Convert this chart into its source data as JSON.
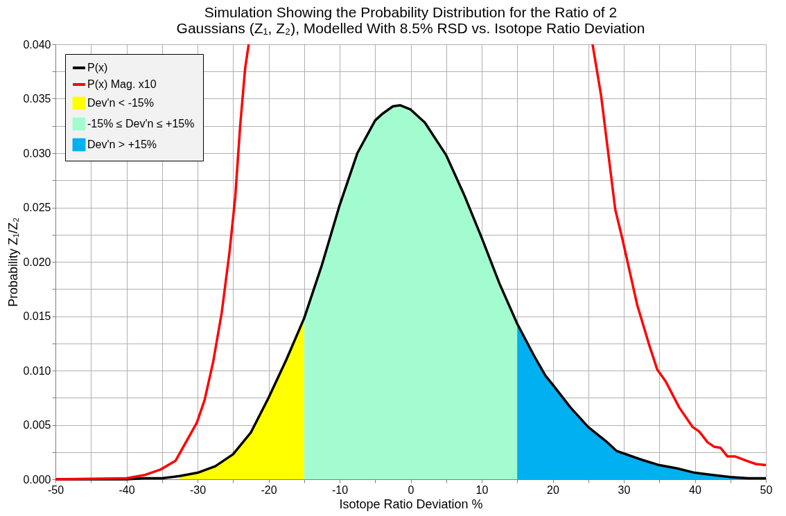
{
  "chart_data": {
    "type": "line",
    "title": "Simulation Showing the Probability Distribution for the Ratio of 2 Gaussians (Z₁, Z₂), Modelled With 8.5% RSD vs. Isotope Ratio Deviation",
    "xlabel": "Isotope Ratio Deviation %",
    "ylabel": "Probability Z₁/Z₂",
    "xlim": [
      -50,
      50
    ],
    "xticks": [
      -50,
      {
        "value": -45,
        "label": null
      },
      -40,
      {
        "value": -35,
        "label": null
      },
      -30,
      {
        "value": -25,
        "label": null
      },
      -20,
      {
        "value": -15,
        "label": null
      },
      -10,
      {
        "value": -5,
        "label": null
      },
      0,
      {
        "value": 5,
        "label": null
      },
      10,
      {
        "value": 15,
        "label": null
      },
      20,
      {
        "value": 25,
        "label": null
      },
      30,
      {
        "value": 35,
        "label": null
      },
      40,
      {
        "value": 45,
        "label": null
      },
      50
    ],
    "ylim": [
      0,
      0.04
    ],
    "yticks": [
      {
        "value": 0,
        "label": "0.000"
      },
      {
        "value": 0.0025,
        "label": null
      },
      {
        "value": 0.005,
        "label": "0.005"
      },
      {
        "value": 0.0075,
        "label": null
      },
      {
        "value": 0.01,
        "label": "0.010"
      },
      {
        "value": 0.0125,
        "label": null
      },
      {
        "value": 0.015,
        "label": "0.015"
      },
      {
        "value": 0.0175,
        "label": null
      },
      {
        "value": 0.02,
        "label": "0.020"
      },
      {
        "value": 0.0225,
        "label": null
      },
      {
        "value": 0.025,
        "label": "0.025"
      },
      {
        "value": 0.0275,
        "label": null
      },
      {
        "value": 0.03,
        "label": "0.030"
      },
      {
        "value": 0.0325,
        "label": null
      },
      {
        "value": 0.035,
        "label": "0.035"
      },
      {
        "value": 0.0375,
        "label": null
      },
      {
        "value": 0.04,
        "label": "0.040"
      }
    ],
    "grid": true,
    "legend": "top left",
    "marker": "none",
    "line_style": "solid",
    "series": [
      {
        "name": "Dev'n < -15%",
        "type": "area",
        "color": "#ffff00",
        "x": [
          -32.5,
          -30,
          -27.5,
          -25,
          -22.5,
          -20,
          -17.5,
          -15
        ],
        "values": [
          0.0003,
          0.0006,
          0.0012,
          0.0023,
          0.0043,
          0.0075,
          0.011,
          0.0148
        ]
      },
      {
        "name": "-15% ≤ Dev'n ≤ +15%",
        "type": "area",
        "color": "#a3fcd0",
        "x": [
          -15,
          -12.5,
          -10,
          -7.5,
          -5,
          -4,
          -2.5,
          -1.5,
          0,
          2,
          5,
          7.5,
          10,
          12.5,
          15
        ],
        "values": [
          0.0148,
          0.0197,
          0.0252,
          0.03,
          0.033,
          0.0336,
          0.0343,
          0.0344,
          0.034,
          0.0328,
          0.0298,
          0.0262,
          0.0222,
          0.018,
          0.0143
        ]
      },
      {
        "name": "Dev'n > +15%",
        "type": "area",
        "color": "#00b0f0",
        "x": [
          15,
          17.5,
          19,
          20,
          22.5,
          25,
          27.5,
          29,
          32.5,
          35,
          37.5,
          40,
          42.5,
          45,
          47.5,
          50
        ],
        "values": [
          0.0143,
          0.0112,
          0.0095,
          0.0087,
          0.0066,
          0.0048,
          0.0035,
          0.0026,
          0.0018,
          0.0013,
          0.001,
          0.0006,
          0.0004,
          0.0002,
          0.0001,
          0.0001
        ]
      },
      {
        "name": "P(x)",
        "color": "#000000",
        "x": [
          -50,
          -45,
          -40,
          -37.5,
          -35,
          -32.5,
          -30,
          -27.5,
          -25,
          -22.5,
          -20,
          -17.5,
          -15,
          -12.5,
          -10,
          -7.5,
          -5,
          -4,
          -2.5,
          -1.5,
          0,
          2,
          5,
          7.5,
          10,
          12.5,
          15,
          17.5,
          19,
          20,
          22.5,
          25,
          27.5,
          29,
          32.5,
          35,
          37.5,
          40,
          42.5,
          45,
          47.5,
          50
        ],
        "values": [
          0,
          0,
          0,
          0.0001,
          0.0001,
          0.0003,
          0.0006,
          0.0012,
          0.0023,
          0.0043,
          0.0075,
          0.011,
          0.0148,
          0.0197,
          0.0252,
          0.03,
          0.033,
          0.0336,
          0.0343,
          0.0344,
          0.034,
          0.0328,
          0.0298,
          0.0262,
          0.0222,
          0.018,
          0.0143,
          0.0112,
          0.0095,
          0.0087,
          0.0066,
          0.0048,
          0.0035,
          0.0026,
          0.0018,
          0.0013,
          0.001,
          0.0006,
          0.0004,
          0.0002,
          0.0001,
          0.0001
        ]
      },
      {
        "name": "P(x) Mag. x10",
        "color": "#ff0000",
        "x": [
          -50,
          -40,
          -37.4,
          -35.2,
          -33.1,
          -30.1,
          -29,
          -27.8,
          -26.6,
          -25.5,
          -24.7,
          -24,
          -23.3,
          -22.8,
          null,
          25.6,
          26.8,
          28.8,
          29.8,
          31.9,
          33.6,
          34.7,
          35.9,
          37.8,
          39.7,
          40.6,
          41.8,
          42.7,
          43.6,
          44.6,
          45.7,
          47.3,
          48.6,
          50
        ],
        "values": [
          0,
          0.0001,
          0.0004,
          0.0009,
          0.0017,
          0.0052,
          0.0073,
          0.0108,
          0.0153,
          0.0209,
          0.0259,
          0.0325,
          0.0378,
          0.04,
          null,
          0.04,
          0.0353,
          0.0248,
          0.0221,
          0.016,
          0.0123,
          0.0101,
          0.009,
          0.0066,
          0.0048,
          0.0044,
          0.0034,
          0.003,
          0.0029,
          0.0021,
          0.0021,
          0.0017,
          0.0014,
          0.0013
        ]
      }
    ]
  }
}
